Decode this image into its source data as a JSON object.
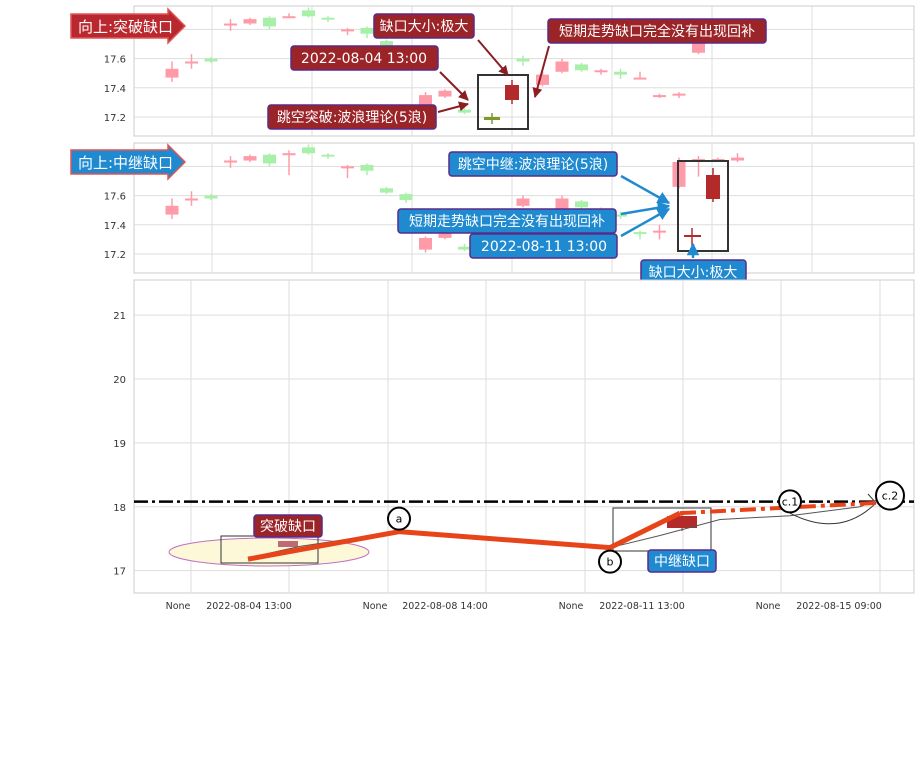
{
  "chart_data": [
    {
      "type": "candlestick",
      "panel": "top",
      "banner": "向上:突破缺口",
      "y_ticks": [
        17.2,
        17.4,
        17.6,
        17.8
      ],
      "ylim": [
        17.07,
        17.96
      ],
      "candles": [
        {
          "o": 17.47,
          "h": 17.58,
          "l": 17.44,
          "c": 17.53
        },
        {
          "o": 17.57,
          "h": 17.63,
          "l": 17.53,
          "c": 17.58
        },
        {
          "o": 17.6,
          "h": 17.61,
          "l": 17.57,
          "c": 17.58
        },
        {
          "o": 17.84,
          "h": 17.87,
          "l": 17.79,
          "c": 17.84
        },
        {
          "o": 17.84,
          "h": 17.88,
          "l": 17.83,
          "c": 17.87
        },
        {
          "o": 17.88,
          "h": 17.89,
          "l": 17.8,
          "c": 17.82
        },
        {
          "o": 17.89,
          "h": 17.91,
          "l": 17.88,
          "c": 17.89
        },
        {
          "o": 17.93,
          "h": 17.95,
          "l": 17.88,
          "c": 17.89
        },
        {
          "o": 17.88,
          "h": 17.89,
          "l": 17.85,
          "c": 17.87
        },
        {
          "o": 17.79,
          "h": 17.81,
          "l": 17.76,
          "c": 17.8
        },
        {
          "o": 17.81,
          "h": 17.82,
          "l": 17.74,
          "c": 17.77
        },
        {
          "o": 17.72,
          "h": 17.73,
          "l": 17.67,
          "c": 17.68
        },
        {
          "o": 17.68,
          "h": 17.68,
          "l": 17.57,
          "c": 17.59
        },
        {
          "o": 17.28,
          "h": 17.37,
          "l": 17.27,
          "c": 17.35
        },
        {
          "o": 17.34,
          "h": 17.39,
          "l": 17.33,
          "c": 17.38
        },
        {
          "o": 17.25,
          "h": 17.26,
          "l": 17.22,
          "c": 17.23
        },
        {
          "o": 17.2,
          "h": 17.22,
          "l": 17.16,
          "c": 17.18
        },
        {
          "o": 17.36,
          "h": 17.47,
          "l": 17.34,
          "c": 17.45
        },
        {
          "o": 17.6,
          "h": 17.62,
          "l": 17.55,
          "c": 17.58
        },
        {
          "o": 17.42,
          "h": 17.51,
          "l": 17.41,
          "c": 17.49
        },
        {
          "o": 17.51,
          "h": 17.6,
          "l": 17.5,
          "c": 17.58
        },
        {
          "o": 17.56,
          "h": 17.57,
          "l": 17.51,
          "c": 17.52
        },
        {
          "o": 17.51,
          "h": 17.53,
          "l": 17.49,
          "c": 17.52
        },
        {
          "o": 17.51,
          "h": 17.53,
          "l": 17.46,
          "c": 17.49
        },
        {
          "o": 17.47,
          "h": 17.51,
          "l": 17.46,
          "c": 17.47
        },
        {
          "o": 17.35,
          "h": 17.36,
          "l": 17.33,
          "c": 17.35
        },
        {
          "o": 17.35,
          "h": 17.37,
          "l": 17.33,
          "c": 17.36
        },
        {
          "o": 17.64,
          "h": 17.82,
          "l": 17.63,
          "c": 17.8
        },
        {
          "o": 17.85,
          "h": 17.86,
          "l": 17.83,
          "c": 17.85
        },
        {
          "o": 17.83,
          "h": 17.85,
          "l": 17.81,
          "c": 17.84
        }
      ],
      "annotations": [
        {
          "text": "缺口大小:极大"
        },
        {
          "text": "2022-08-04 13:00"
        },
        {
          "text": "跳空突破:波浪理论(5浪)"
        },
        {
          "text": "短期走势缺口完全没有出现回补"
        }
      ]
    },
    {
      "type": "candlestick",
      "panel": "middle",
      "banner": "向上:中继缺口",
      "y_ticks": [
        17.2,
        17.4,
        17.6,
        17.8
      ],
      "ylim": [
        17.07,
        17.96
      ],
      "candles": [
        {
          "o": 17.47,
          "h": 17.58,
          "l": 17.44,
          "c": 17.53
        },
        {
          "o": 17.57,
          "h": 17.63,
          "l": 17.53,
          "c": 17.58
        },
        {
          "o": 17.6,
          "h": 17.61,
          "l": 17.57,
          "c": 17.58
        },
        {
          "o": 17.84,
          "h": 17.87,
          "l": 17.79,
          "c": 17.84
        },
        {
          "o": 17.84,
          "h": 17.88,
          "l": 17.83,
          "c": 17.87
        },
        {
          "o": 17.88,
          "h": 17.89,
          "l": 17.8,
          "c": 17.82
        },
        {
          "o": 17.89,
          "h": 17.91,
          "l": 17.74,
          "c": 17.89
        },
        {
          "o": 17.93,
          "h": 17.95,
          "l": 17.88,
          "c": 17.89
        },
        {
          "o": 17.88,
          "h": 17.89,
          "l": 17.85,
          "c": 17.87
        },
        {
          "o": 17.79,
          "h": 17.81,
          "l": 17.72,
          "c": 17.8
        },
        {
          "o": 17.81,
          "h": 17.82,
          "l": 17.74,
          "c": 17.77
        },
        {
          "o": 17.65,
          "h": 17.66,
          "l": 17.61,
          "c": 17.62
        },
        {
          "o": 17.61,
          "h": 17.62,
          "l": 17.55,
          "c": 17.57
        },
        {
          "o": 17.23,
          "h": 17.32,
          "l": 17.21,
          "c": 17.31
        },
        {
          "o": 17.31,
          "h": 17.35,
          "l": 17.3,
          "c": 17.34
        },
        {
          "o": 17.25,
          "h": 17.27,
          "l": 17.22,
          "c": 17.23
        },
        {
          "o": 17.36,
          "h": 17.38,
          "l": 17.32,
          "c": 17.34
        },
        {
          "o": 17.46,
          "h": 17.48,
          "l": 17.44,
          "c": 17.47
        },
        {
          "o": 17.53,
          "h": 17.6,
          "l": 17.52,
          "c": 17.58
        },
        {
          "o": 17.42,
          "h": 17.5,
          "l": 17.41,
          "c": 17.49
        },
        {
          "o": 17.51,
          "h": 17.6,
          "l": 17.5,
          "c": 17.58
        },
        {
          "o": 17.56,
          "h": 17.57,
          "l": 17.51,
          "c": 17.52
        },
        {
          "o": 17.5,
          "h": 17.52,
          "l": 17.47,
          "c": 17.49
        },
        {
          "o": 17.47,
          "h": 17.49,
          "l": 17.44,
          "c": 17.46
        },
        {
          "o": 17.35,
          "h": 17.36,
          "l": 17.3,
          "c": 17.34
        },
        {
          "o": 17.35,
          "h": 17.4,
          "l": 17.3,
          "c": 17.36
        },
        {
          "o": 17.66,
          "h": 17.86,
          "l": 17.65,
          "c": 17.83
        },
        {
          "o": 17.85,
          "h": 17.87,
          "l": 17.73,
          "c": 17.85
        },
        {
          "o": 17.85,
          "h": 17.86,
          "l": 17.84,
          "c": 17.85
        },
        {
          "o": 17.84,
          "h": 17.89,
          "l": 17.83,
          "c": 17.86
        }
      ],
      "annotations": [
        {
          "text": "跳空中继:波浪理论(5浪)"
        },
        {
          "text": "短期走势缺口完全没有出现回补"
        },
        {
          "text": "2022-08-11 13:00"
        },
        {
          "text": "缺口大小:极大"
        }
      ]
    },
    {
      "type": "line",
      "panel": "bottom",
      "y_ticks": [
        17,
        18,
        19,
        20,
        21
      ],
      "ylim": [
        16.65,
        21.55
      ],
      "x_ticks": [
        "None",
        "2022-08-04 13:00",
        "None",
        "2022-08-08 14:00",
        "None",
        "2022-08-11 13:00",
        "None",
        "2022-08-15 09:00"
      ],
      "resistance_level": 18.08,
      "wave_points": [
        {
          "label": "a",
          "y": 17.61
        },
        {
          "label": "b",
          "y": 17.36
        },
        {
          "label": "c.1",
          "y": 18.1
        },
        {
          "label": "c.2",
          "y": 18.05
        }
      ],
      "gap_labels": [
        "突破缺口",
        "中继缺口"
      ]
    }
  ],
  "colors": {
    "up_red": "#ff9aa8",
    "down_green": "#a8f0a8",
    "gap_red": "#b22a2a",
    "gap_green": "#7a9a2a",
    "banner_red": "#b8282e",
    "banner_blue": "#1f8ad0",
    "trend_orange": "#e8441a",
    "label_border": "#5a2a8a"
  }
}
